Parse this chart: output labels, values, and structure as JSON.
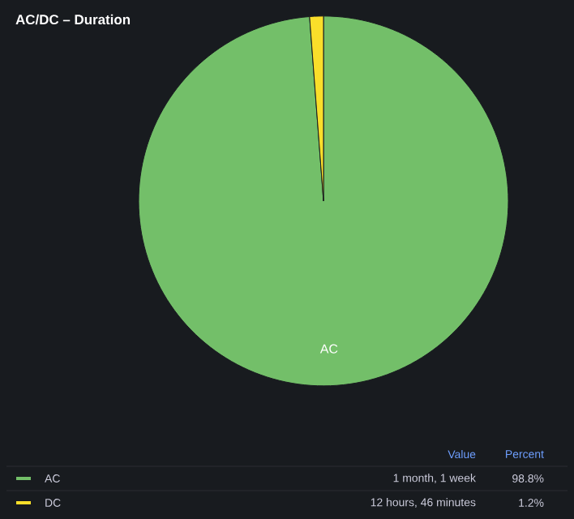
{
  "chart_data": {
    "type": "pie",
    "title": "AC/DC – Duration",
    "categories": [
      "AC",
      "DC"
    ],
    "values": [
      98.8,
      1.2
    ],
    "colors": [
      "#73bf69",
      "#fade2a"
    ],
    "value_labels": [
      "98.8%",
      "1.2%"
    ],
    "legend": "bottom",
    "annotations": [
      "Value",
      "Percent",
      "1 month, 1 week",
      "12 hours, 46 minutes"
    ]
  }
}
